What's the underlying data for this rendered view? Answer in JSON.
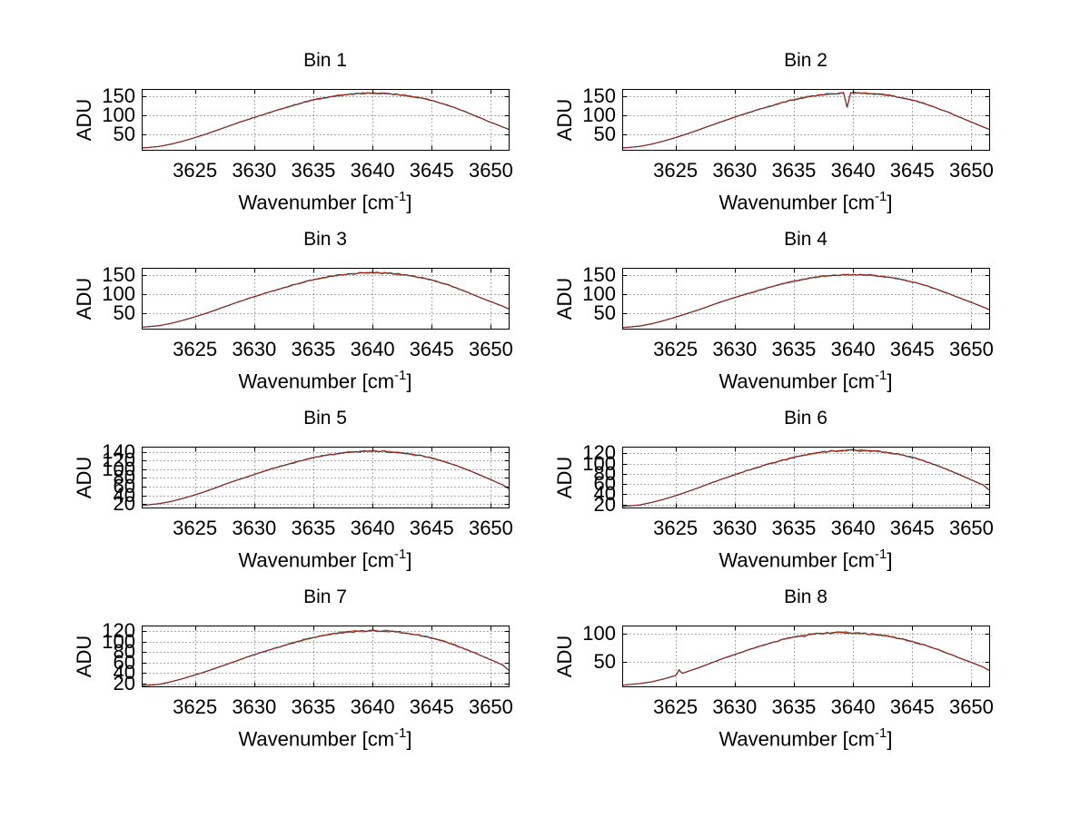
{
  "labels": {
    "ylabel": "ADU",
    "xlabel_main": "Wavenumber [cm",
    "xlabel_sup": "-1",
    "xlabel_close": "]"
  },
  "style": {
    "background": "#ffffff",
    "axis_color": "#000000",
    "grid_color": "#5a5a5a",
    "text_color": "#000000",
    "curve_main": "#8f201c",
    "curve_secondary": "#c4642c",
    "curve_under": "#3f9fae"
  },
  "common": {
    "xlim": [
      3620.5,
      3651.5
    ],
    "xticks": [
      3625,
      3630,
      3635,
      3640,
      3645,
      3650
    ],
    "grid": true,
    "x_samples": [
      3620.5,
      3621,
      3622,
      3623,
      3624,
      3625,
      3626,
      3627,
      3628,
      3629,
      3630,
      3631,
      3632,
      3633,
      3634,
      3635,
      3636,
      3637,
      3638,
      3639,
      3640,
      3641,
      3642,
      3643,
      3644,
      3645,
      3646,
      3647,
      3648,
      3649,
      3650,
      3651,
      3651.5
    ]
  },
  "chart_data": [
    {
      "type": "line",
      "title": "Bin 1",
      "xlabel": "Wavenumber [cm^-1]",
      "ylabel": "ADU",
      "ylim": [
        10,
        170
      ],
      "yticks": [
        50,
        100,
        150
      ],
      "peak": 159,
      "noise": 2.5,
      "values": [
        15,
        16,
        19,
        25,
        33,
        42,
        52,
        63,
        74,
        85,
        95,
        105,
        115,
        124,
        133,
        141,
        147,
        152,
        156,
        158,
        159,
        158,
        156,
        152,
        147,
        140,
        131,
        120,
        108,
        95,
        82,
        70,
        64
      ]
    },
    {
      "type": "line",
      "title": "Bin 2",
      "xlabel": "Wavenumber [cm^-1]",
      "ylabel": "ADU",
      "ylim": [
        10,
        170
      ],
      "yticks": [
        50,
        100,
        150
      ],
      "peak": 160,
      "noise": 2.6,
      "dip": {
        "x": 3639.5,
        "depth": 38,
        "width": 0.3
      },
      "values": [
        15,
        16,
        19,
        25,
        33,
        42,
        52,
        63,
        74,
        85,
        96,
        106,
        116,
        125,
        134,
        142,
        148,
        153,
        157,
        159,
        160,
        159,
        157,
        153,
        148,
        141,
        132,
        121,
        109,
        96,
        83,
        70,
        64
      ]
    },
    {
      "type": "line",
      "title": "Bin 3",
      "xlabel": "Wavenumber [cm^-1]",
      "ylabel": "ADU",
      "ylim": [
        10,
        170
      ],
      "yticks": [
        50,
        100,
        150
      ],
      "peak": 157,
      "noise": 2.5,
      "values": [
        14,
        15,
        18,
        24,
        32,
        41,
        51,
        62,
        73,
        84,
        94,
        104,
        113,
        122,
        131,
        139,
        145,
        150,
        154,
        156,
        157,
        156,
        154,
        150,
        145,
        138,
        129,
        118,
        106,
        93,
        81,
        69,
        62
      ]
    },
    {
      "type": "line",
      "title": "Bin 4",
      "xlabel": "Wavenumber [cm^-1]",
      "ylabel": "ADU",
      "ylim": [
        10,
        170
      ],
      "yticks": [
        50,
        100,
        150
      ],
      "peak": 152,
      "noise": 2.5,
      "values": [
        13,
        14,
        17,
        23,
        31,
        40,
        50,
        60,
        71,
        82,
        92,
        101,
        110,
        119,
        128,
        135,
        141,
        146,
        149,
        151,
        152,
        151,
        149,
        145,
        140,
        133,
        125,
        114,
        103,
        91,
        79,
        67,
        60
      ]
    },
    {
      "type": "line",
      "title": "Bin 5",
      "xlabel": "Wavenumber [cm^-1]",
      "ylabel": "ADU",
      "ylim": [
        12,
        152
      ],
      "yticks": [
        20,
        40,
        60,
        80,
        100,
        120,
        140
      ],
      "peak": 142,
      "noise": 2.2,
      "values": [
        17,
        18,
        21,
        26,
        33,
        41,
        50,
        60,
        70,
        79,
        88,
        97,
        105,
        113,
        120,
        127,
        132,
        136,
        139,
        141,
        142,
        141,
        139,
        136,
        132,
        126,
        118,
        109,
        99,
        88,
        76,
        64,
        55
      ]
    },
    {
      "type": "line",
      "title": "Bin 6",
      "xlabel": "Wavenumber [cm^-1]",
      "ylabel": "ADU",
      "ylim": [
        14,
        133
      ],
      "yticks": [
        20,
        40,
        60,
        80,
        100,
        120
      ],
      "peak": 126,
      "noise": 2.2,
      "values": [
        16,
        17,
        19,
        24,
        30,
        37,
        45,
        53,
        62,
        70,
        78,
        86,
        93,
        100,
        106,
        112,
        117,
        121,
        124,
        125,
        126,
        125,
        124,
        121,
        117,
        112,
        105,
        97,
        88,
        78,
        68,
        58,
        48
      ]
    },
    {
      "type": "line",
      "title": "Bin 7",
      "xlabel": "Wavenumber [cm^-1]",
      "ylabel": "ADU",
      "ylim": [
        14,
        131
      ],
      "yticks": [
        20,
        40,
        60,
        80,
        100,
        120
      ],
      "peak": 121,
      "noise": 2.2,
      "values": [
        15,
        16,
        18,
        23,
        29,
        36,
        43,
        51,
        59,
        67,
        75,
        82,
        89,
        96,
        102,
        108,
        112,
        116,
        119,
        120,
        121,
        120,
        119,
        116,
        112,
        107,
        101,
        93,
        84,
        75,
        65,
        55,
        45
      ]
    },
    {
      "type": "line",
      "title": "Bin 8",
      "xlabel": "Wavenumber [cm^-1]",
      "ylabel": "ADU",
      "ylim": [
        7,
        114
      ],
      "yticks": [
        50,
        100
      ],
      "peak": 102,
      "noise": 2.0,
      "spike": {
        "x": 3625.3,
        "amp": 8,
        "width": 0.25
      },
      "values": [
        9,
        10,
        12,
        15,
        20,
        26,
        33,
        40,
        48,
        56,
        63,
        70,
        77,
        83,
        89,
        94,
        97,
        100,
        101,
        102,
        101,
        100,
        98,
        95,
        91,
        86,
        80,
        73,
        65,
        57,
        49,
        41,
        35
      ]
    }
  ]
}
